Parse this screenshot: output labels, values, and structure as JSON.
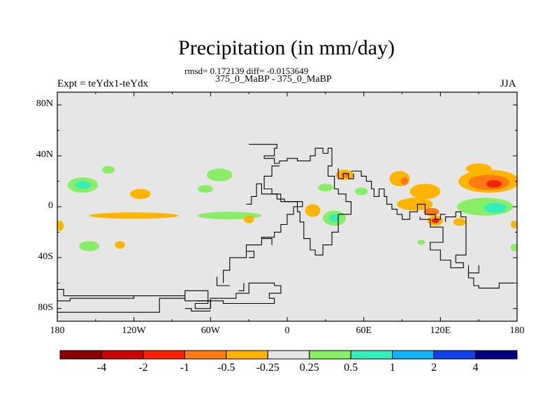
{
  "title": "Precipitation (in mm/day)",
  "stats": "rmsd= 0.172139 diff= -0.0153649",
  "subtitle": "375_0_MaBP - 375_0_MaBP",
  "left_label": "Expt = teYdx1-teYdx",
  "right_label": "JJA",
  "chart_data": {
    "type": "heatmap",
    "projection": "cylindrical-equidistant",
    "lon_range": [
      -180,
      180
    ],
    "lat_range": [
      -90,
      90
    ],
    "y_tick_labels": [
      "80N",
      "40N",
      "0",
      "40S",
      "80S"
    ],
    "y_tick_values": [
      80,
      40,
      0,
      -40,
      -80
    ],
    "x_tick_labels": [
      "180",
      "120W",
      "60W",
      "0",
      "60E",
      "120E",
      "180"
    ],
    "x_tick_values": [
      -180,
      -120,
      -60,
      0,
      60,
      120,
      180
    ],
    "background_color": "#e6e6e6",
    "colorbar": {
      "colors": [
        "#8b0000",
        "#cc0000",
        "#ff2000",
        "#ff7a10",
        "#ffb400",
        "#e6e6e6",
        "#88ee66",
        "#33eebb",
        "#11b4f4",
        "#1140ee",
        "#000080"
      ],
      "labels": [
        "-4",
        "-2",
        "-1",
        "-0.5",
        "-0.25",
        "0.25",
        "0.5",
        "1",
        "2",
        "4"
      ]
    },
    "anomaly_regions": [
      {
        "lon": -160,
        "lat": 17,
        "rx": 12,
        "ry": 6,
        "level": 6
      },
      {
        "lon": -160,
        "lat": 17,
        "rx": 6,
        "ry": 3,
        "level": 7
      },
      {
        "lon": -140,
        "lat": 29,
        "rx": 5,
        "ry": 3,
        "level": 6
      },
      {
        "lon": -115,
        "lat": 10,
        "rx": 8,
        "ry": 4,
        "level": 4
      },
      {
        "lon": -53,
        "lat": 25,
        "rx": 10,
        "ry": 5,
        "level": 6
      },
      {
        "lon": -64,
        "lat": 14,
        "rx": 6,
        "ry": 3,
        "level": 6
      },
      {
        "lon": -120,
        "lat": -7,
        "rx": 35,
        "ry": 2.5,
        "level": 4
      },
      {
        "lon": -45,
        "lat": -7,
        "rx": 25,
        "ry": 3,
        "level": 6
      },
      {
        "lon": -178,
        "lat": -15,
        "rx": 3,
        "ry": 4,
        "level": 4
      },
      {
        "lon": -155,
        "lat": -31,
        "rx": 8,
        "ry": 4,
        "level": 6
      },
      {
        "lon": -131,
        "lat": -30,
        "rx": 4,
        "ry": 3,
        "level": 4
      },
      {
        "lon": -30,
        "lat": -10,
        "rx": 4,
        "ry": 3,
        "level": 4
      },
      {
        "lon": 20,
        "lat": -3,
        "rx": 6,
        "ry": 5,
        "level": 4
      },
      {
        "lon": 37,
        "lat": -9,
        "rx": 9,
        "ry": 6,
        "level": 6
      },
      {
        "lon": 37,
        "lat": -9,
        "rx": 4,
        "ry": 3,
        "level": 7
      },
      {
        "lon": 45,
        "lat": 25,
        "rx": 7,
        "ry": 4,
        "level": 4
      },
      {
        "lon": 45,
        "lat": 25,
        "rx": 3,
        "ry": 2,
        "level": 3
      },
      {
        "lon": 30,
        "lat": 15,
        "rx": 6,
        "ry": 3,
        "level": 6
      },
      {
        "lon": 58,
        "lat": 12,
        "rx": 5,
        "ry": 3,
        "level": 6
      },
      {
        "lon": 88,
        "lat": 22,
        "rx": 8,
        "ry": 6,
        "level": 4
      },
      {
        "lon": 92,
        "lat": 20,
        "rx": 3,
        "ry": 3,
        "level": 3
      },
      {
        "lon": 108,
        "lat": 12,
        "rx": 12,
        "ry": 6,
        "level": 4
      },
      {
        "lon": 100,
        "lat": 2,
        "rx": 14,
        "ry": 5,
        "level": 4
      },
      {
        "lon": 113,
        "lat": -4,
        "rx": 6,
        "ry": 3,
        "level": 3
      },
      {
        "lon": 116,
        "lat": -11,
        "rx": 6,
        "ry": 4,
        "level": 4
      },
      {
        "lon": 116,
        "lat": -11,
        "rx": 3,
        "ry": 2,
        "level": 2
      },
      {
        "lon": 158,
        "lat": 20,
        "rx": 24,
        "ry": 9,
        "level": 4
      },
      {
        "lon": 158,
        "lat": 19,
        "rx": 16,
        "ry": 6,
        "level": 3
      },
      {
        "lon": 162,
        "lat": 18,
        "rx": 6,
        "ry": 3,
        "level": 2
      },
      {
        "lon": 150,
        "lat": 30,
        "rx": 10,
        "ry": 4,
        "level": 4
      },
      {
        "lon": 155,
        "lat": 0,
        "rx": 22,
        "ry": 7,
        "level": 6
      },
      {
        "lon": 163,
        "lat": -1,
        "rx": 9,
        "ry": 4,
        "level": 7
      },
      {
        "lon": 135,
        "lat": -12,
        "rx": 5,
        "ry": 3,
        "level": 4
      },
      {
        "lon": 178,
        "lat": -14,
        "rx": 3,
        "ry": 3,
        "level": 4
      },
      {
        "lon": 178,
        "lat": -32,
        "rx": 3,
        "ry": 3,
        "level": 6
      },
      {
        "lon": 105,
        "lat": -28,
        "rx": 3,
        "ry": 2,
        "level": 6
      }
    ],
    "coastlines": [
      [
        [
          -30,
          49
        ],
        [
          -8,
          49
        ],
        [
          -8,
          46
        ],
        [
          -10,
          46
        ],
        [
          -10,
          40
        ],
        [
          -18,
          40
        ],
        [
          -18,
          38
        ],
        [
          -10,
          38
        ],
        [
          -10,
          34
        ],
        [
          -6,
          34
        ],
        [
          -6,
          36
        ],
        [
          0,
          36
        ],
        [
          0,
          38
        ],
        [
          8,
          38
        ],
        [
          8,
          36
        ],
        [
          18,
          36
        ],
        [
          18,
          40
        ],
        [
          22,
          40
        ],
        [
          22,
          46
        ],
        [
          28,
          46
        ],
        [
          28,
          42
        ],
        [
          32,
          42
        ],
        [
          32,
          46
        ],
        [
          35,
          46
        ],
        [
          35,
          32
        ],
        [
          32,
          32
        ],
        [
          32,
          24
        ],
        [
          37,
          24
        ],
        [
          37,
          14
        ],
        [
          40,
          14
        ],
        [
          40,
          10
        ],
        [
          46,
          10
        ],
        [
          46,
          4
        ],
        [
          50,
          4
        ],
        [
          50,
          -6
        ],
        [
          40,
          -6
        ],
        [
          40,
          -20
        ],
        [
          35,
          -20
        ],
        [
          35,
          -30
        ],
        [
          28,
          -30
        ],
        [
          28,
          -38
        ],
        [
          22,
          -38
        ],
        [
          22,
          -34
        ],
        [
          18,
          -34
        ],
        [
          18,
          -25
        ],
        [
          13,
          -25
        ],
        [
          13,
          -12
        ],
        [
          10,
          -12
        ],
        [
          10,
          -4
        ],
        [
          8,
          -4
        ],
        [
          8,
          4
        ],
        [
          -2,
          4
        ],
        [
          -2,
          6
        ],
        [
          -8,
          6
        ],
        [
          -8,
          10
        ],
        [
          -12,
          10
        ],
        [
          -12,
          14
        ],
        [
          -18,
          14
        ],
        [
          -18,
          24
        ],
        [
          -12,
          24
        ],
        [
          -12,
          32
        ],
        [
          -6,
          32
        ]
      ],
      [
        [
          50,
          28
        ],
        [
          58,
          28
        ],
        [
          58,
          24
        ],
        [
          62,
          24
        ],
        [
          62,
          20
        ],
        [
          66,
          20
        ],
        [
          66,
          14
        ],
        [
          68,
          14
        ],
        [
          68,
          8
        ],
        [
          72,
          8
        ],
        [
          72,
          14
        ],
        [
          76,
          14
        ],
        [
          76,
          8
        ],
        [
          78,
          8
        ],
        [
          78,
          2
        ],
        [
          82,
          2
        ],
        [
          82,
          -2
        ],
        [
          86,
          -2
        ],
        [
          86,
          -6
        ],
        [
          90,
          -6
        ],
        [
          90,
          -10
        ],
        [
          96,
          -10
        ],
        [
          96,
          -4
        ],
        [
          102,
          -4
        ],
        [
          102,
          2
        ],
        [
          108,
          2
        ],
        [
          108,
          -6
        ],
        [
          116,
          -6
        ],
        [
          116,
          -10
        ],
        [
          120,
          -10
        ],
        [
          120,
          -6
        ],
        [
          124,
          -6
        ]
      ],
      [
        [
          40,
          30
        ],
        [
          40,
          22
        ],
        [
          44,
          22
        ],
        [
          44,
          26
        ],
        [
          48,
          26
        ],
        [
          48,
          22
        ],
        [
          52,
          22
        ],
        [
          52,
          26
        ]
      ],
      [
        [
          104,
          -8
        ],
        [
          104,
          -10
        ],
        [
          112,
          -10
        ],
        [
          112,
          -16
        ],
        [
          122,
          -16
        ],
        [
          122,
          -28
        ],
        [
          112,
          -28
        ],
        [
          112,
          -34
        ],
        [
          120,
          -34
        ],
        [
          120,
          -42
        ],
        [
          128,
          -42
        ],
        [
          128,
          -48
        ],
        [
          138,
          -48
        ],
        [
          138,
          -44
        ],
        [
          132,
          -44
        ],
        [
          132,
          -38
        ],
        [
          140,
          -38
        ],
        [
          140,
          -8
        ],
        [
          136,
          -8
        ],
        [
          136,
          -4
        ],
        [
          132,
          -4
        ],
        [
          132,
          -8
        ],
        [
          124,
          -8
        ],
        [
          124,
          -12
        ]
      ],
      [
        [
          142,
          -46
        ],
        [
          142,
          -56
        ],
        [
          146,
          -56
        ],
        [
          146,
          -62
        ],
        [
          150,
          -62
        ],
        [
          150,
          -64
        ],
        [
          166,
          -64
        ],
        [
          166,
          -60
        ],
        [
          178,
          -60
        ]
      ],
      [
        [
          142,
          -48
        ],
        [
          142,
          -52
        ],
        [
          150,
          -52
        ],
        [
          150,
          -46
        ]
      ],
      [
        [
          -180,
          -80
        ],
        [
          -180,
          -83
        ],
        [
          -100,
          -83
        ],
        [
          -100,
          -72
        ],
        [
          -80,
          -72
        ],
        [
          -80,
          -66
        ],
        [
          -62,
          -66
        ],
        [
          -62,
          -76
        ],
        [
          -72,
          -76
        ],
        [
          -72,
          -80
        ],
        [
          -60,
          -80
        ],
        [
          -60,
          -72
        ],
        [
          -40,
          -72
        ],
        [
          -40,
          -68
        ],
        [
          -30,
          -68
        ],
        [
          -30,
          -60
        ],
        [
          -10,
          -60
        ],
        [
          -10,
          -62
        ],
        [
          -5,
          -62
        ],
        [
          -5,
          -68
        ],
        [
          -14,
          -68
        ],
        [
          -14,
          -72
        ],
        [
          -10,
          -72
        ],
        [
          -10,
          -76
        ],
        [
          -50,
          -76
        ],
        [
          -50,
          -74
        ],
        [
          -80,
          -74
        ],
        [
          -80,
          -70
        ],
        [
          -120,
          -70
        ],
        [
          -120,
          -72
        ],
        [
          -170,
          -72
        ],
        [
          -170,
          -74
        ],
        [
          -180,
          -74
        ]
      ],
      [
        [
          -180,
          -65
        ],
        [
          -175,
          -65
        ],
        [
          -175,
          -70
        ],
        [
          -120,
          -70
        ]
      ],
      [
        [
          -70,
          -74
        ],
        [
          -60,
          -74
        ],
        [
          -60,
          -80
        ]
      ],
      [
        [
          -80,
          -80
        ],
        [
          -75,
          -80
        ],
        [
          -75,
          -82
        ],
        [
          -60,
          -82
        ]
      ],
      [
        [
          -50,
          -60
        ],
        [
          -50,
          -50
        ],
        [
          -45,
          -50
        ],
        [
          -45,
          -40
        ],
        [
          -32,
          -40
        ],
        [
          -32,
          -30
        ],
        [
          -20,
          -30
        ],
        [
          -20,
          -24
        ],
        [
          -10,
          -24
        ],
        [
          -10,
          -20
        ],
        [
          -5,
          -20
        ],
        [
          -5,
          -14
        ],
        [
          0,
          -14
        ],
        [
          0,
          -6
        ],
        [
          5,
          -6
        ],
        [
          5,
          0
        ],
        [
          12,
          0
        ],
        [
          12,
          4
        ],
        [
          -5,
          4
        ],
        [
          -5,
          10
        ],
        [
          -20,
          10
        ],
        [
          -20,
          18
        ],
        [
          -24,
          18
        ],
        [
          -24,
          8
        ],
        [
          -28,
          8
        ],
        [
          -28,
          2
        ],
        [
          -32,
          2
        ]
      ],
      [
        [
          -32,
          -35
        ],
        [
          -26,
          -35
        ],
        [
          -26,
          -40
        ],
        [
          -30,
          -40
        ]
      ],
      [
        [
          -55,
          -55
        ],
        [
          -55,
          -62
        ],
        [
          -45,
          -62
        ]
      ],
      [
        [
          -38,
          -66
        ],
        [
          -34,
          -66
        ],
        [
          -34,
          -60
        ]
      ],
      [
        [
          -20,
          -25
        ],
        [
          -12,
          -25
        ],
        [
          -12,
          -30
        ]
      ]
    ]
  }
}
